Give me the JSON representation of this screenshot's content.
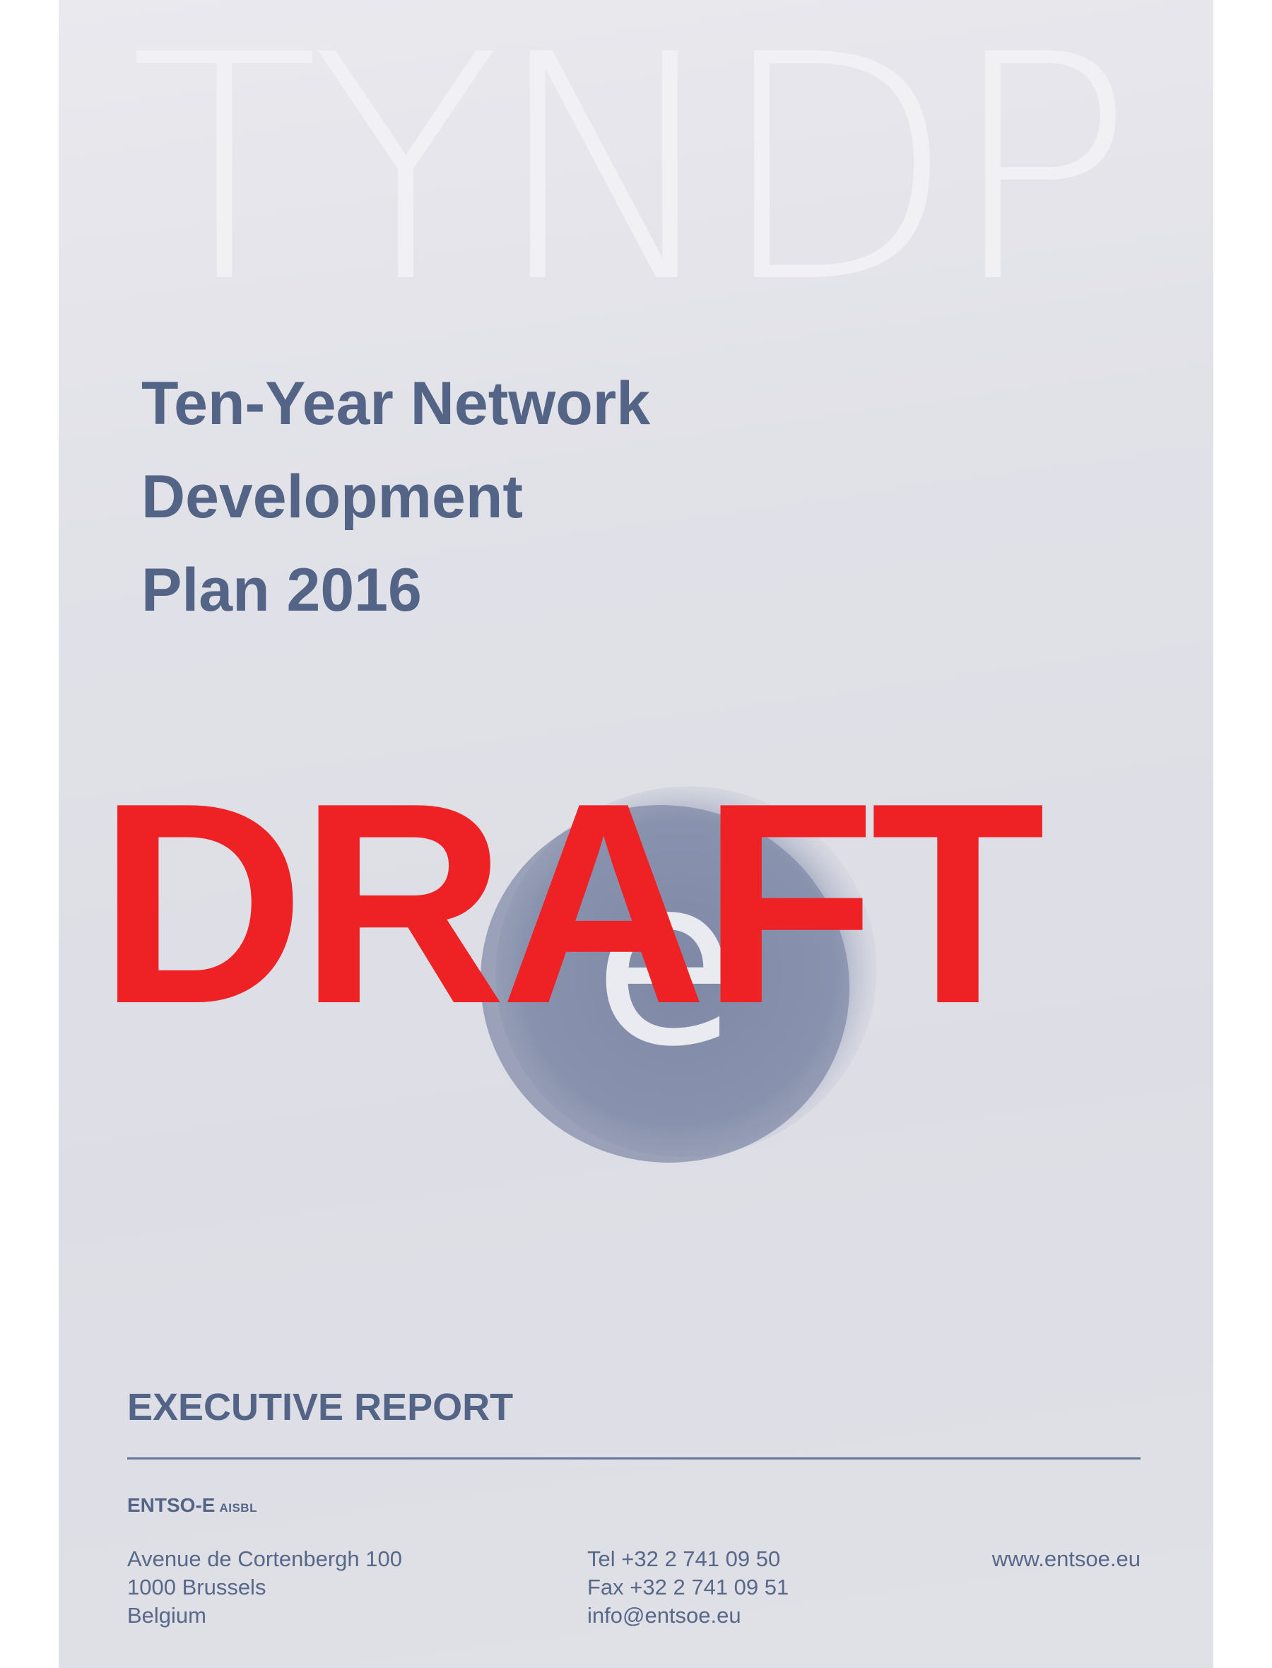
{
  "cover": {
    "watermark": "TYNDP",
    "title_lines": [
      "Ten-Year Network",
      "Development",
      "Plan 2016"
    ],
    "logo_letter": "e",
    "draft_stamp": "DRAFT",
    "report_label": "EXECUTIVE REPORT"
  },
  "footer": {
    "org_name": "ENTSO-E",
    "org_suffix": "AISBL",
    "address": [
      "Avenue de Cortenbergh 100",
      "1000 Brussels",
      "Belgium"
    ],
    "contact": [
      "Tel +32 2 741 09 50",
      "Fax +32 2 741 09 51",
      "info@entsoe.eu"
    ],
    "website": "www.entsoe.eu"
  },
  "colors": {
    "text_blue": "#536486",
    "draft_red": "#ee2225",
    "logo_fill": "#7d88a5",
    "background": "#e1e1e8"
  }
}
